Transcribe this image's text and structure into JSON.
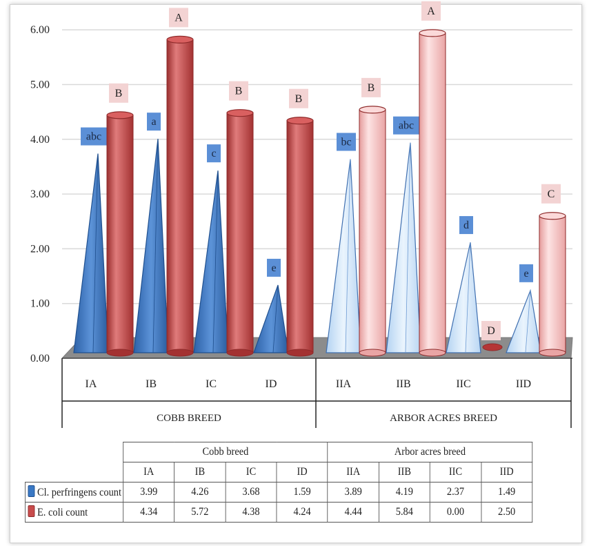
{
  "chart_data": {
    "type": "bar",
    "ylim": [
      0,
      6
    ],
    "yticks": [
      "0.00",
      "1.00",
      "2.00",
      "3.00",
      "4.00",
      "5.00",
      "6.00"
    ],
    "grid": true,
    "categories": [
      "IA",
      "IB",
      "IC",
      "ID",
      "IIA",
      "IIB",
      "IIC",
      "IID"
    ],
    "groups": [
      {
        "label": "COBB BREED",
        "categories": [
          "IA",
          "IB",
          "IC",
          "ID"
        ]
      },
      {
        "label": "ARBOR ACRES BREED",
        "categories": [
          "IIA",
          "IIB",
          "IIC",
          "IID"
        ]
      }
    ],
    "series": [
      {
        "name": "Cl. perfringens count",
        "values": [
          3.99,
          4.26,
          3.68,
          1.59,
          3.89,
          4.19,
          2.37,
          1.49
        ],
        "labels": [
          "abc",
          "a",
          "c",
          "e",
          "bc",
          "abc",
          "d",
          "e"
        ]
      },
      {
        "name": "E. coli count",
        "values": [
          4.34,
          5.72,
          4.38,
          4.24,
          4.44,
          5.84,
          0.0,
          2.5
        ],
        "labels": [
          "B",
          "A",
          "B",
          "B",
          "B",
          "A",
          "D",
          "C"
        ]
      }
    ]
  },
  "table": {
    "group_headers": [
      "Cobb breed",
      "Arbor acres breed"
    ],
    "columns": [
      "IA",
      "IB",
      "IC",
      "ID",
      "IIA",
      "IIB",
      "IIC",
      "IID"
    ],
    "rows": [
      {
        "label": "Cl. perfringens count",
        "values": [
          "3.99",
          "4.26",
          "3.68",
          "1.59",
          "3.89",
          "4.19",
          "2.37",
          "1.49"
        ]
      },
      {
        "label": "E. coli count",
        "values": [
          "4.34",
          "5.72",
          "4.38",
          "4.24",
          "4.44",
          "5.84",
          "0.00",
          "2.50"
        ]
      }
    ]
  },
  "colors": {
    "cobb_pyramid": "#3a78c4",
    "cobb_cylinder": "#c84c4c",
    "arbor_pyramid": "#cfe4f7",
    "arbor_cylinder": "#f2b8b8",
    "label_blue": "#5b8fd6",
    "label_pink": "#f3d3d3",
    "floor": "#8c8c8c"
  }
}
